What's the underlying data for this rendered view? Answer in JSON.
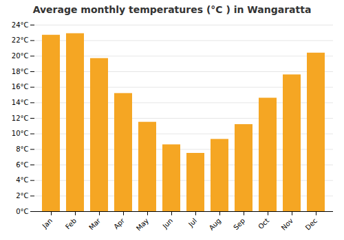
{
  "chart_data": {
    "type": "bar",
    "title": "Average monthly temperatures (°C ) in Wangaratta",
    "categories": [
      "Jan",
      "Feb",
      "Mar",
      "Apr",
      "May",
      "Jun",
      "Jul",
      "Aug",
      "Sep",
      "Oct",
      "Nov",
      "Dec"
    ],
    "values": [
      22.7,
      22.9,
      19.7,
      15.2,
      11.5,
      8.6,
      7.5,
      9.3,
      11.2,
      14.6,
      17.6,
      20.4
    ],
    "color": "#F5A623",
    "ylim": [
      0,
      24
    ],
    "yticks": [
      {
        "value": 0,
        "label": "0°C"
      },
      {
        "value": 2,
        "label": "2°C"
      },
      {
        "value": 4,
        "label": "4°C"
      },
      {
        "value": 6,
        "label": "6°C"
      },
      {
        "value": 8,
        "label": "8°C"
      },
      {
        "value": 10,
        "label": "10°C"
      },
      {
        "value": 12,
        "label": "12°C"
      },
      {
        "value": 14,
        "label": "14°C"
      },
      {
        "value": 16,
        "label": "16°C"
      },
      {
        "value": 18,
        "label": "18°C"
      },
      {
        "value": 20,
        "label": "20°C"
      },
      {
        "value": 22,
        "label": "22°C"
      },
      {
        "value": 24,
        "label": "24°C"
      }
    ],
    "grid": true
  }
}
